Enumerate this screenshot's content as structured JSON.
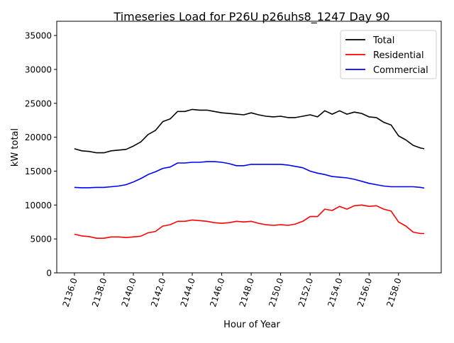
{
  "chart_data": {
    "type": "line",
    "title": "Timeseries Load for P26U p26uhs8_1247  Day 90",
    "xlabel": "Hour of Year",
    "ylabel": "kW total",
    "xlim": [
      2134.8,
      2160.9
    ],
    "ylim": [
      0,
      37100
    ],
    "xticks": [
      2136,
      2138,
      2140,
      2142,
      2144,
      2146,
      2148,
      2150,
      2152,
      2154,
      2156,
      2158
    ],
    "xtick_labels": [
      "2136.0",
      "2138.0",
      "2140.0",
      "2142.0",
      "2144.0",
      "2146.0",
      "2148.0",
      "2150.0",
      "2152.0",
      "2154.0",
      "2156.0",
      "2158.0"
    ],
    "yticks": [
      0,
      5000,
      10000,
      15000,
      20000,
      25000,
      30000,
      35000
    ],
    "ytick_labels": [
      "0",
      "5000",
      "10000",
      "15000",
      "20000",
      "25000",
      "30000",
      "35000"
    ],
    "grid": false,
    "legend_position": "top-right",
    "x": [
      2136,
      2136.5,
      2137,
      2137.5,
      2138,
      2138.5,
      2139,
      2139.5,
      2140,
      2140.5,
      2141,
      2141.5,
      2142,
      2142.5,
      2143,
      2143.5,
      2144,
      2144.5,
      2145,
      2145.5,
      2146,
      2146.5,
      2147,
      2147.5,
      2148,
      2148.5,
      2149,
      2149.5,
      2150,
      2150.5,
      2151,
      2151.5,
      2152,
      2152.5,
      2153,
      2153.5,
      2154,
      2154.5,
      2155,
      2155.5,
      2156,
      2156.5,
      2157,
      2157.5,
      2158,
      2158.5,
      2159,
      2159.5,
      2159.75
    ],
    "series": [
      {
        "name": "Total",
        "color": "#000000",
        "values": [
          18300,
          18000,
          17900,
          17700,
          17700,
          18000,
          18100,
          18200,
          18700,
          19300,
          20400,
          21000,
          22300,
          22700,
          23800,
          23800,
          24100,
          24000,
          24000,
          23800,
          23600,
          23500,
          23400,
          23300,
          23600,
          23300,
          23100,
          23000,
          23100,
          22900,
          22900,
          23100,
          23300,
          23000,
          23900,
          23400,
          23900,
          23400,
          23700,
          23500,
          23000,
          22900,
          22200,
          21800,
          20200,
          19600,
          18800,
          18400,
          18300
        ]
      },
      {
        "name": "Residential",
        "color": "#ff0000",
        "values": [
          5700,
          5450,
          5350,
          5100,
          5100,
          5300,
          5300,
          5200,
          5300,
          5400,
          5900,
          6100,
          6900,
          7100,
          7600,
          7600,
          7800,
          7700,
          7600,
          7400,
          7300,
          7400,
          7600,
          7500,
          7600,
          7300,
          7100,
          7000,
          7100,
          7000,
          7200,
          7600,
          8300,
          8300,
          9400,
          9200,
          9800,
          9400,
          9900,
          10000,
          9800,
          9900,
          9400,
          9100,
          7500,
          6900,
          6000,
          5800,
          5800
        ]
      },
      {
        "name": "Commercial",
        "color": "#0000ff",
        "values": [
          12600,
          12550,
          12550,
          12600,
          12600,
          12700,
          12800,
          13000,
          13400,
          13900,
          14500,
          14900,
          15400,
          15600,
          16200,
          16200,
          16300,
          16300,
          16400,
          16400,
          16300,
          16100,
          15800,
          15800,
          16000,
          16000,
          16000,
          16000,
          16000,
          15900,
          15700,
          15500,
          15000,
          14700,
          14500,
          14200,
          14100,
          14000,
          13800,
          13500,
          13200,
          13000,
          12800,
          12700,
          12700,
          12700,
          12700,
          12600,
          12500
        ]
      }
    ]
  }
}
